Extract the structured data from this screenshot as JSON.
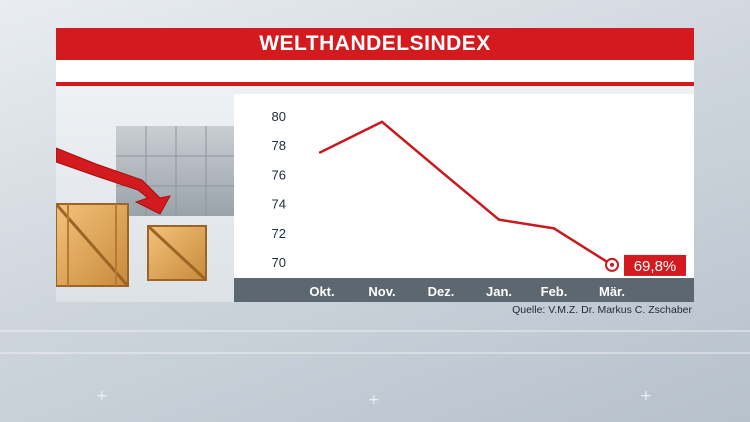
{
  "title": "WELTHANDELSINDEX",
  "source": "Quelle: V.M.Z. Dr. Markus C. Zschaber",
  "colors": {
    "accent": "#d31a1f",
    "axis_bar": "#5d6770",
    "line": "#c8191e"
  },
  "chart_data": {
    "type": "line",
    "title": "WELTHANDELSINDEX",
    "categories": [
      "Okt.",
      "Nov.",
      "Dez.",
      "Jan.",
      "Feb.",
      "Mär."
    ],
    "series": [
      {
        "values": [
          77.5,
          79.6,
          76.2,
          72.9,
          72.3,
          69.8
        ]
      }
    ],
    "yticks": [
      80,
      78,
      76,
      74,
      72,
      70
    ],
    "ylim": [
      69,
      81
    ],
    "grid": false,
    "annotation": {
      "text": "69,8%",
      "category": "Mär."
    },
    "xlabel": "",
    "ylabel": ""
  }
}
